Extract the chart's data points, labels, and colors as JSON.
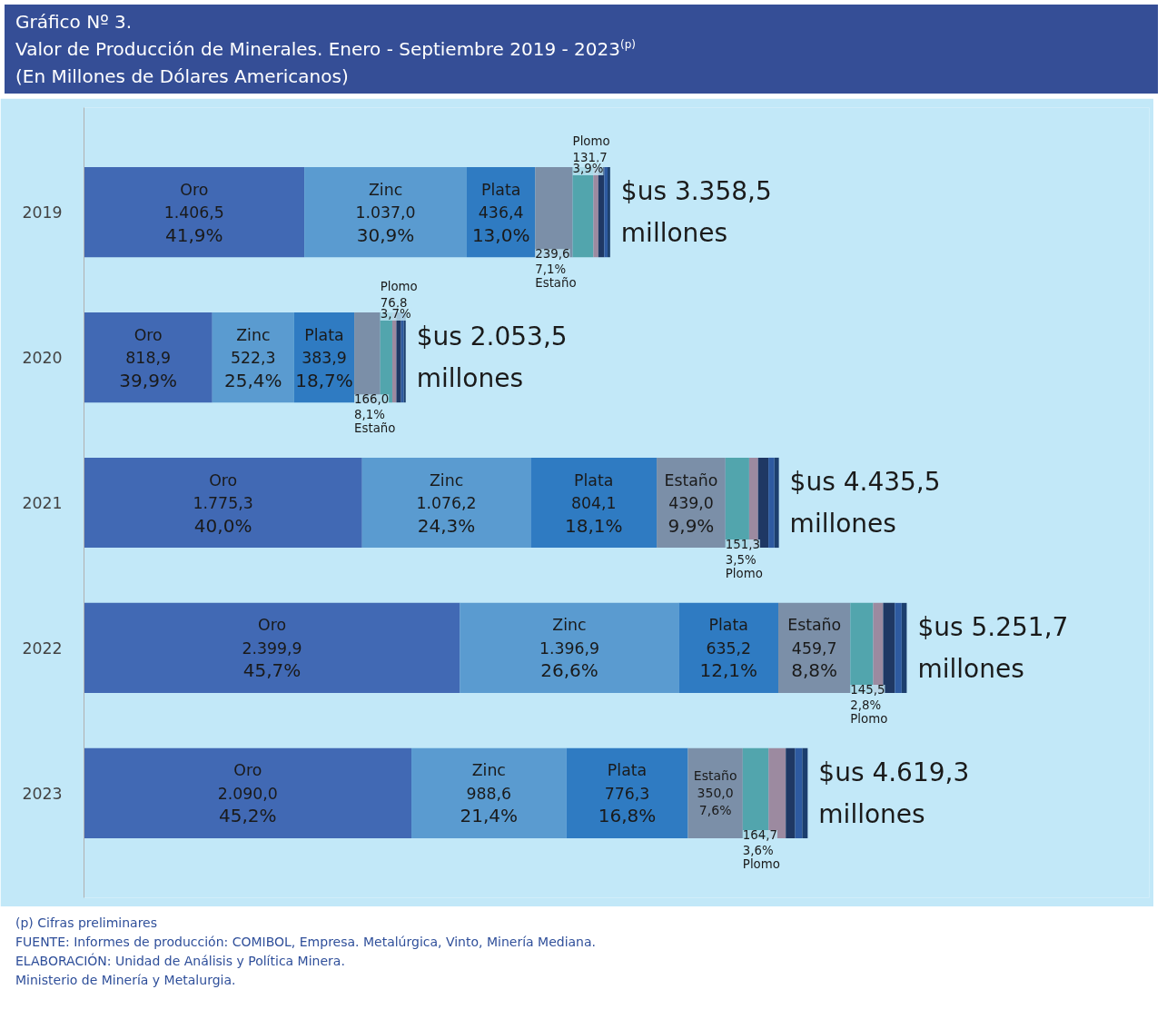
{
  "chart_data": {
    "type": "bar",
    "orientation": "horizontal",
    "stacked": true,
    "title": "Gráfico Nº 3.\nValor de Producción de Minerales. Enero - Septiembre 2019 - 2023$^{(p)}$",
    "subtitle": "(En Millones de Dólares Americanos)",
    "categories": [
      "2019",
      "2020",
      "2021",
      "2022",
      "2023"
    ],
    "xlim": [
      0,
      6800
    ],
    "tick_labels": "y",
    "grid": false,
    "series": [
      {
        "name": "Oro",
        "color": "#4169b4",
        "values": [
          1406.5,
          818.9,
          1775.3,
          2399.9,
          2090.0
        ],
        "value_labels": [
          "1.406,5\n41,9%",
          "818,9\n39,9%",
          "1.775,3\n40,0%",
          "2.399,9\n45,7%",
          "2.090,0\n45,2%"
        ]
      },
      {
        "name": "Zinc",
        "color": "#5a9bd0",
        "values": [
          1037.0,
          522.3,
          1076.2,
          1396.9,
          988.6
        ],
        "value_labels": [
          "1.037,0\n30,9%",
          "522,3\n25,4%",
          "1.076,2\n24,3%",
          "1.396,9\n26,6%",
          "988,6\n21,4%"
        ]
      },
      {
        "name": "Plata",
        "color": "#2f7bc2",
        "values": [
          436.4,
          383.9,
          804.1,
          635.2,
          776.3
        ],
        "value_labels": [
          "436,4\n13,0%",
          "383,9\n18,7%",
          "804,1\n18,1%",
          "635,2\n12,1%",
          "776,3\n16,8%"
        ]
      },
      {
        "name": "Estaño",
        "color": "#7b8fa8",
        "values": [
          239.6,
          166.0,
          439.0,
          459.7,
          350.0
        ],
        "value_labels": [
          "239,6\n7,1%",
          "166,0\n8,1%",
          "439,0\n9,9%",
          "459,7\n8,8%",
          "350,0\n7,6%"
        ]
      },
      {
        "name": "Plomo",
        "color": "#52a5ad",
        "values": [
          131.7,
          76.8,
          151.3,
          145.5,
          164.7
        ],
        "value_labels": [
          "131,7\n3,9%",
          "76,8\n3,7%",
          "151,3\n3,5%",
          "145,5\n2,8%",
          "164,7\n3,6%"
        ]
      },
      {
        "color": "#9c8aa0",
        "values": [
          32,
          26,
          57,
          64,
          110
        ]
      },
      {
        "color": "#1f3864",
        "values": [
          38,
          30,
          66,
          75,
          60
        ]
      },
      {
        "color": "#2e5aa0",
        "values": [
          21,
          17,
          38,
          43,
          45
        ]
      },
      {
        "color": "#1c3f6e",
        "values": [
          16.3,
          12.6,
          28.6,
          32.5,
          34.7
        ]
      }
    ],
    "totals": [
      "$us 3.358,5\nmillones",
      "$us 2.053,5\nmillones",
      "$us 4.435,5\nmillones",
      "$us 5.251,7\nmillones",
      "$us 4.619,3\nmillones"
    ],
    "annotations": [
      "(p) Cifras preliminares",
      "FUENTE: Informes de producción: COMIBOL, Empresa. Metalúrgica, Vinto, Minería Mediana.",
      "ELABORACIÓN: Unidad de Análisis y Política Minera.",
      "Ministerio de Minería y Metalurgia."
    ]
  }
}
